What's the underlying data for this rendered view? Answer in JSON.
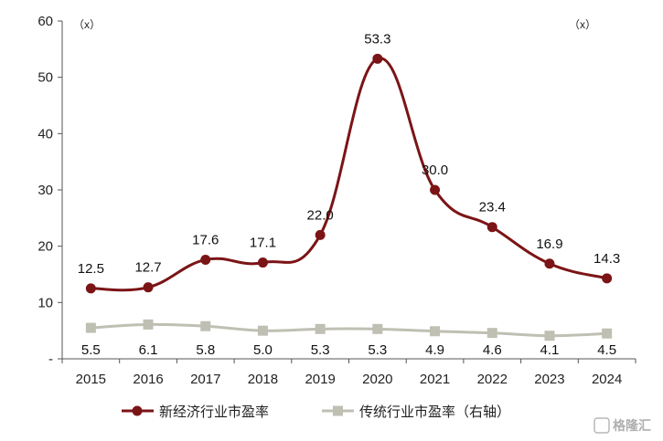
{
  "chart_data": {
    "type": "line",
    "categories": [
      "2015",
      "2016",
      "2017",
      "2018",
      "2019",
      "2020",
      "2021",
      "2022",
      "2023",
      "2024"
    ],
    "series": [
      {
        "name": "新经济行业市盈率",
        "axis": "left",
        "color": "#7b1416",
        "marker": "circle",
        "values": [
          12.5,
          12.7,
          17.6,
          17.1,
          22.0,
          53.3,
          30.0,
          23.4,
          16.9,
          14.3
        ],
        "labels": [
          "12.5",
          "12.7",
          "17.6",
          "17.1",
          "22.0",
          "53.3",
          "30.0",
          "23.4",
          "16.9",
          "14.3"
        ]
      },
      {
        "name": "传统行业市盈率（右轴）",
        "axis": "right",
        "color": "#bfbfb3",
        "marker": "square",
        "values": [
          5.5,
          6.1,
          5.8,
          5.0,
          5.3,
          5.3,
          4.9,
          4.6,
          4.1,
          4.5
        ],
        "labels": [
          "5.5",
          "6.1",
          "5.8",
          "5.0",
          "5.3",
          "5.3",
          "4.9",
          "4.6",
          "4.1",
          "4.5"
        ]
      }
    ],
    "yaxis_left": {
      "min": 0,
      "max": 60,
      "ticks": [
        "-",
        "10",
        "20",
        "30",
        "40",
        "50",
        "60"
      ],
      "unit": "（x）"
    },
    "yaxis_right": {
      "unit": "（x）"
    },
    "grid": false,
    "legend": "bottom"
  },
  "watermark": "格隆汇"
}
